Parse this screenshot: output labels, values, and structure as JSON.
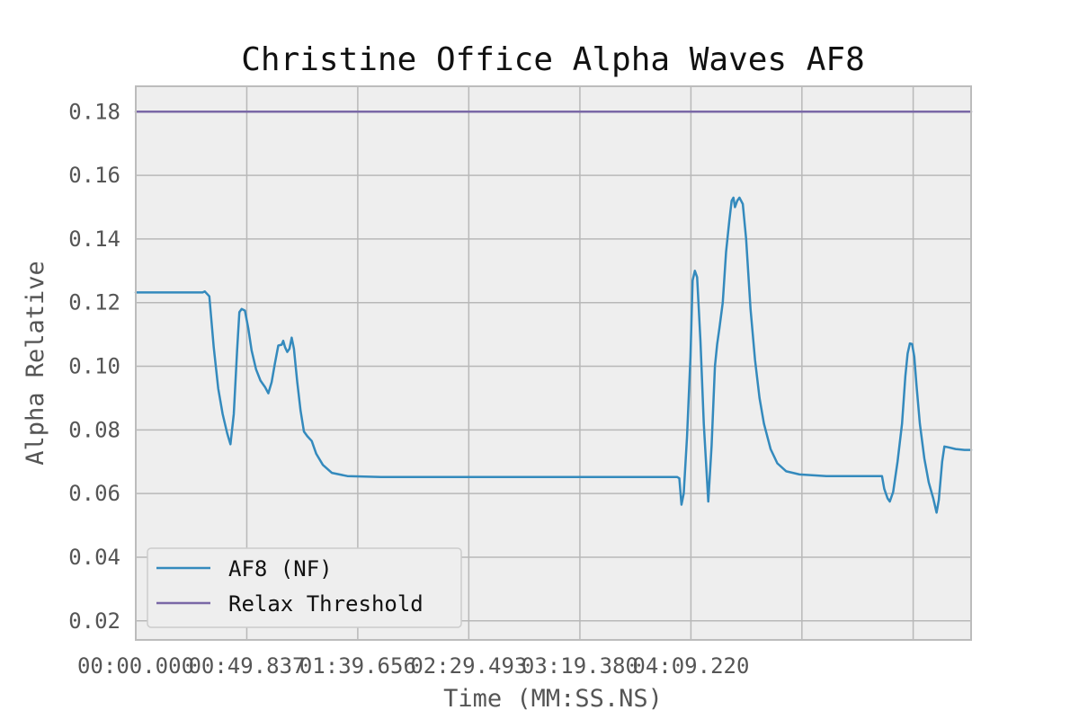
{
  "chart_data": {
    "type": "line",
    "title": "Christine Office Alpha Waves AF8",
    "xlabel": "Time (MM:SS.NS)",
    "ylabel": "Alpha Relative",
    "x_tick_labels": [
      "00:00.000",
      "00:49.837",
      "01:39.656",
      "02:29.493",
      "03:19.380",
      "04:09.220"
    ],
    "x_tick_values": [
      0,
      49.837,
      99.656,
      149.493,
      199.38,
      249.22
    ],
    "x_extra_gridlines": [
      299.05,
      349.0
    ],
    "xlim": [
      0,
      375
    ],
    "y_ticks": [
      0.02,
      0.04,
      0.06,
      0.08,
      0.1,
      0.12,
      0.14,
      0.16,
      0.18
    ],
    "y_tick_labels": [
      "0.02",
      "0.04",
      "0.06",
      "0.08",
      "0.10",
      "0.12",
      "0.14",
      "0.16",
      "0.18"
    ],
    "ylim": [
      0.014,
      0.188
    ],
    "grid": true,
    "legend_position": "lower-left",
    "series": [
      {
        "name": "AF8 (NF)",
        "color": "#348abd",
        "points": [
          [
            0,
            0.1232
          ],
          [
            30,
            0.1232
          ],
          [
            31,
            0.1235
          ],
          [
            33,
            0.122
          ],
          [
            35,
            0.106
          ],
          [
            37,
            0.093
          ],
          [
            39,
            0.085
          ],
          [
            41,
            0.079
          ],
          [
            42.5,
            0.0755
          ],
          [
            44,
            0.085
          ],
          [
            45.5,
            0.105
          ],
          [
            46.5,
            0.117
          ],
          [
            47.5,
            0.118
          ],
          [
            49,
            0.1175
          ],
          [
            50.5,
            0.112
          ],
          [
            52,
            0.105
          ],
          [
            54,
            0.099
          ],
          [
            56,
            0.0955
          ],
          [
            58,
            0.0935
          ],
          [
            59.5,
            0.0915
          ],
          [
            61,
            0.095
          ],
          [
            62.5,
            0.101
          ],
          [
            64,
            0.1065
          ],
          [
            65.5,
            0.1068
          ],
          [
            66.2,
            0.108
          ],
          [
            67,
            0.106
          ],
          [
            68,
            0.1045
          ],
          [
            69,
            0.1055
          ],
          [
            70,
            0.109
          ],
          [
            71,
            0.1055
          ],
          [
            72.5,
            0.095
          ],
          [
            74,
            0.086
          ],
          [
            75.5,
            0.0795
          ],
          [
            77,
            0.078
          ],
          [
            79,
            0.0765
          ],
          [
            81,
            0.0725
          ],
          [
            84,
            0.069
          ],
          [
            88,
            0.0665
          ],
          [
            95,
            0.0655
          ],
          [
            110,
            0.0652
          ],
          [
            150,
            0.0652
          ],
          [
            200,
            0.0652
          ],
          [
            243,
            0.0652
          ],
          [
            244,
            0.0648
          ],
          [
            245,
            0.0565
          ],
          [
            246,
            0.06
          ],
          [
            247.5,
            0.078
          ],
          [
            249,
            0.103
          ],
          [
            250,
            0.127
          ],
          [
            251,
            0.13
          ],
          [
            252,
            0.128
          ],
          [
            253.5,
            0.108
          ],
          [
            255,
            0.082
          ],
          [
            257,
            0.0575
          ],
          [
            258.5,
            0.075
          ],
          [
            260,
            0.1
          ],
          [
            261,
            0.107
          ],
          [
            262,
            0.112
          ],
          [
            263.5,
            0.12
          ],
          [
            265,
            0.136
          ],
          [
            266.5,
            0.146
          ],
          [
            267.5,
            0.152
          ],
          [
            268.3,
            0.153
          ],
          [
            269,
            0.15
          ],
          [
            270,
            0.152
          ],
          [
            271,
            0.153
          ],
          [
            272.5,
            0.151
          ],
          [
            274,
            0.14
          ],
          [
            276,
            0.118
          ],
          [
            278,
            0.102
          ],
          [
            280,
            0.09
          ],
          [
            282,
            0.082
          ],
          [
            285,
            0.074
          ],
          [
            288,
            0.0695
          ],
          [
            292,
            0.067
          ],
          [
            298,
            0.066
          ],
          [
            310,
            0.0655
          ],
          [
            335,
            0.0655
          ],
          [
            336,
            0.0615
          ],
          [
            337.5,
            0.0585
          ],
          [
            338.5,
            0.0575
          ],
          [
            340,
            0.0605
          ],
          [
            342,
            0.07
          ],
          [
            344,
            0.082
          ],
          [
            345.5,
            0.097
          ],
          [
            346.5,
            0.104
          ],
          [
            347.5,
            0.1072
          ],
          [
            348.5,
            0.107
          ],
          [
            349.5,
            0.103
          ],
          [
            350.5,
            0.094
          ],
          [
            352,
            0.082
          ],
          [
            354,
            0.071
          ],
          [
            356,
            0.0635
          ],
          [
            358,
            0.0585
          ],
          [
            359.5,
            0.054
          ],
          [
            360.5,
            0.058
          ],
          [
            362,
            0.07
          ],
          [
            363,
            0.0748
          ],
          [
            365,
            0.0745
          ],
          [
            368,
            0.074
          ],
          [
            372,
            0.0737
          ],
          [
            375,
            0.0737
          ]
        ]
      },
      {
        "name": "Relax Threshold",
        "color": "#7a68a6",
        "points": [
          [
            0,
            0.18
          ],
          [
            375,
            0.18
          ]
        ]
      }
    ]
  }
}
